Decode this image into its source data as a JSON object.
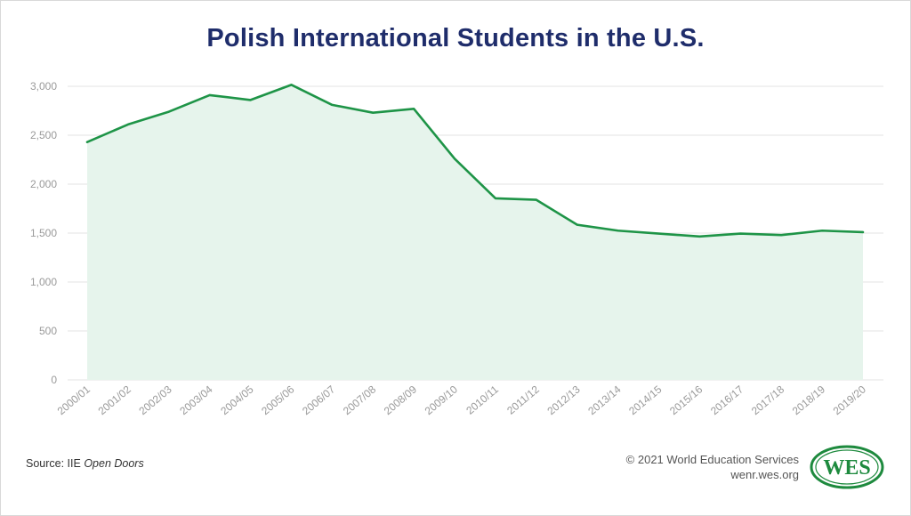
{
  "chart_data": {
    "type": "area",
    "title": "Polish International Students in the U.S.",
    "xlabel": "",
    "ylabel": "",
    "categories": [
      "2000/01",
      "2001/02",
      "2002/03",
      "2003/04",
      "2004/05",
      "2005/06",
      "2006/07",
      "2007/08",
      "2008/09",
      "2009/10",
      "2010/11",
      "2011/12",
      "2012/13",
      "2013/14",
      "2014/15",
      "2015/16",
      "2016/17",
      "2017/18",
      "2018/19",
      "2019/20"
    ],
    "values": [
      2430,
      2610,
      2740,
      2910,
      2860,
      3015,
      2810,
      2730,
      2770,
      2260,
      1855,
      1840,
      1585,
      1525,
      1495,
      1465,
      1495,
      1480,
      1525,
      1510
    ],
    "ylim": [
      0,
      3000
    ],
    "yticks": [
      0,
      500,
      1000,
      1500,
      2000,
      2500,
      3000
    ],
    "ytick_labels": [
      "0",
      "500",
      "1,000",
      "1,500",
      "2,000",
      "2,500",
      "3,000"
    ],
    "line_color": "#1e9447",
    "fill_color": "#e6f4ec",
    "grid_color": "#e3e3e3",
    "grid": true
  },
  "footer": {
    "source_prefix": "Source: IIE ",
    "source_italic": "Open Doors",
    "copyright": "© 2021 World Education Services",
    "website": "wenr.wes.org",
    "logo_text": "WES",
    "brand_color": "#1e8a3e"
  }
}
